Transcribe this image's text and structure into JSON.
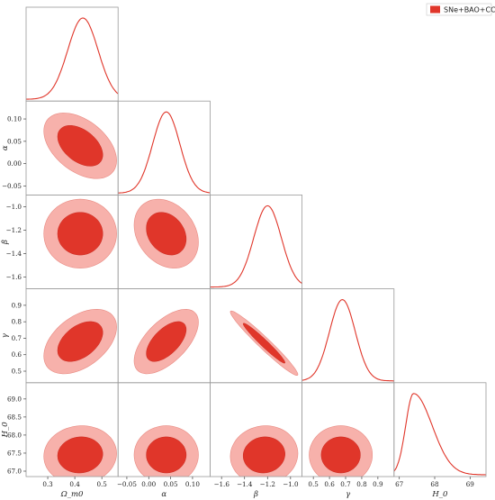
{
  "chart_data": {
    "type": "corner",
    "legend": {
      "placement": "top-right",
      "label": "SNe+BAO+CC",
      "color": "#e0362a"
    },
    "colors": {
      "line": "#e0362a",
      "inner": "#e0362a",
      "outer": "#f7b1ab",
      "frame": "#9a9a9a"
    },
    "parameters": [
      {
        "key": "om",
        "label": "Ω_m0",
        "range": [
          0.22,
          0.56
        ],
        "ticks": [
          "0.3",
          "0.4",
          "0.5"
        ],
        "tickvals": [
          0.3,
          0.4,
          0.5
        ],
        "mean": 0.43,
        "sigma": 0.056
      },
      {
        "key": "alpha",
        "label": "α",
        "range": [
          -0.07,
          0.14
        ],
        "ticks": [
          "−0.05",
          "0.00",
          "0.05",
          "0.10"
        ],
        "tickvals": [
          -0.05,
          0.0,
          0.05,
          0.1
        ],
        "mean": 0.04,
        "sigma": 0.031
      },
      {
        "key": "beta",
        "label": "β",
        "range": [
          -1.7,
          -0.9
        ],
        "ticks": [
          "−1.6",
          "−1.4",
          "−1.2",
          "−1.0"
        ],
        "tickvals": [
          -1.6,
          -1.4,
          -1.2,
          -1.0
        ],
        "mean": -1.2,
        "sigma": 0.12
      },
      {
        "key": "gamma",
        "label": "γ",
        "range": [
          0.43,
          1.0
        ],
        "ticks": [
          "0.5",
          "0.6",
          "0.7",
          "0.8",
          "0.9"
        ],
        "tickvals": [
          0.5,
          0.6,
          0.7,
          0.8,
          0.9
        ],
        "mean": 0.68,
        "sigma": 0.08
      },
      {
        "key": "H0",
        "label": "H_0",
        "range": [
          66.85,
          69.45
        ],
        "ticks": [
          "67",
          "68",
          "69"
        ],
        "tickvals": [
          67,
          68,
          69
        ],
        "ytickvals": [
          67.0,
          67.5,
          68.0,
          68.5,
          69.0
        ],
        "yticks": [
          "67.0",
          "67.5",
          "68.0",
          "68.5",
          "69.0"
        ],
        "mean": 67.4,
        "sigma": 0.22
      }
    ],
    "pairs": [
      {
        "row": 1,
        "col": 0,
        "cx": 0.42,
        "cy": 0.04,
        "sx": 0.055,
        "sy": 0.03,
        "rho": -0.45
      },
      {
        "row": 2,
        "col": 0,
        "cx": 0.42,
        "cy": -1.23,
        "sx": 0.055,
        "sy": 0.12,
        "rho": 0.0
      },
      {
        "row": 2,
        "col": 1,
        "cx": 0.04,
        "cy": -1.23,
        "sx": 0.03,
        "sy": 0.12,
        "rho": -0.25
      },
      {
        "row": 3,
        "col": 0,
        "cx": 0.42,
        "cy": 0.68,
        "sx": 0.055,
        "sy": 0.08,
        "rho": 0.45
      },
      {
        "row": 3,
        "col": 1,
        "cx": 0.04,
        "cy": 0.68,
        "sx": 0.03,
        "sy": 0.08,
        "rho": 0.6
      },
      {
        "row": 3,
        "col": 2,
        "cx": -1.23,
        "cy": 0.67,
        "sx": 0.12,
        "sy": 0.08,
        "rho": -0.97
      },
      {
        "row": 4,
        "col": 0,
        "cx": 0.42,
        "cy": 67.45,
        "sx": 0.055,
        "sy": 0.33,
        "rho": 0.05
      },
      {
        "row": 4,
        "col": 1,
        "cx": 0.04,
        "cy": 67.45,
        "sx": 0.03,
        "sy": 0.33,
        "rho": 0.0
      },
      {
        "row": 4,
        "col": 2,
        "cx": -1.23,
        "cy": 67.45,
        "sx": 0.12,
        "sy": 0.33,
        "rho": 0.05
      },
      {
        "row": 4,
        "col": 3,
        "cx": 0.67,
        "cy": 67.45,
        "sx": 0.08,
        "sy": 0.33,
        "rho": 0.0
      }
    ]
  }
}
